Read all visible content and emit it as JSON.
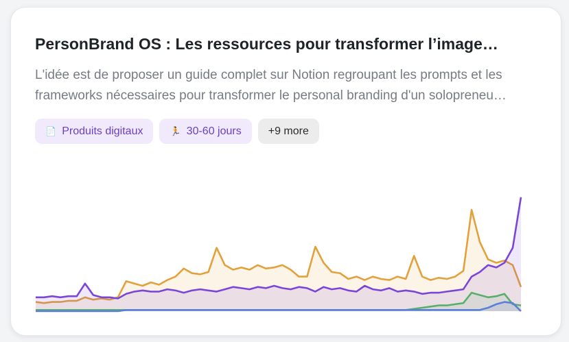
{
  "card": {
    "title": "PersonBrand OS : Les ressources pour transformer l’image…",
    "description": [
      "L'idée est de proposer un guide complet sur Notion regroupant les prompts et les",
      "frameworks nécessaires pour transformer le personal branding d'un solopreneu…"
    ],
    "tags": [
      {
        "icon": "📄",
        "label": "Produits digitaux"
      },
      {
        "icon": "🏃",
        "label": "30-60 jours"
      },
      {
        "label": "+9 more"
      }
    ]
  },
  "chart_data": {
    "type": "line",
    "ylim": [
      0,
      100
    ],
    "fill": true,
    "series": [
      {
        "color": "#e2a13c",
        "values": [
          8,
          7,
          8,
          8,
          9,
          9,
          12,
          10,
          11,
          10,
          12,
          26,
          24,
          22,
          25,
          23,
          27,
          30,
          37,
          33,
          32,
          34,
          55,
          40,
          36,
          38,
          36,
          40,
          37,
          38,
          40,
          36,
          30,
          30,
          56,
          42,
          34,
          33,
          28,
          30,
          27,
          30,
          28,
          27,
          30,
          28,
          48,
          30,
          27,
          29,
          28,
          30,
          35,
          88,
          60,
          45,
          42,
          44,
          40,
          21
        ]
      },
      {
        "color": "#7b45d8",
        "values": [
          12,
          12,
          13,
          12,
          13,
          13,
          24,
          14,
          12,
          12,
          11,
          15,
          17,
          18,
          17,
          17,
          19,
          18,
          16,
          18,
          19,
          18,
          17,
          19,
          21,
          20,
          19,
          21,
          20,
          22,
          20,
          19,
          21,
          20,
          17,
          21,
          19,
          20,
          18,
          17,
          22,
          19,
          18,
          20,
          17,
          18,
          17,
          15,
          16,
          16,
          17,
          18,
          19,
          30,
          34,
          40,
          38,
          42,
          55,
          99
        ]
      },
      {
        "color": "#5aae6d",
        "values": [
          1,
          1,
          1,
          1,
          1,
          1,
          1,
          1,
          1,
          1,
          1,
          1,
          1,
          1,
          1,
          1,
          1,
          1,
          1,
          1,
          1,
          1,
          1,
          1,
          1,
          1,
          1,
          1,
          1,
          1,
          1,
          1,
          1,
          1,
          1,
          1,
          1,
          1,
          1,
          1,
          1,
          1,
          1,
          1,
          1,
          1,
          2,
          3,
          4,
          5,
          5,
          6,
          7,
          16,
          14,
          12,
          13,
          15,
          6,
          5
        ]
      },
      {
        "color": "#5a7fd8",
        "values": [
          0,
          0,
          0,
          0,
          0,
          0,
          0,
          0,
          0,
          0,
          0,
          1,
          1,
          1,
          1,
          1,
          1,
          1,
          1,
          1,
          1,
          1,
          1,
          1,
          1,
          1,
          1,
          1,
          1,
          1,
          1,
          1,
          1,
          1,
          1,
          1,
          1,
          1,
          1,
          1,
          1,
          1,
          1,
          1,
          1,
          1,
          1,
          1,
          1,
          1,
          1,
          1,
          1,
          1,
          1,
          3,
          6,
          8,
          7,
          0
        ]
      }
    ]
  }
}
